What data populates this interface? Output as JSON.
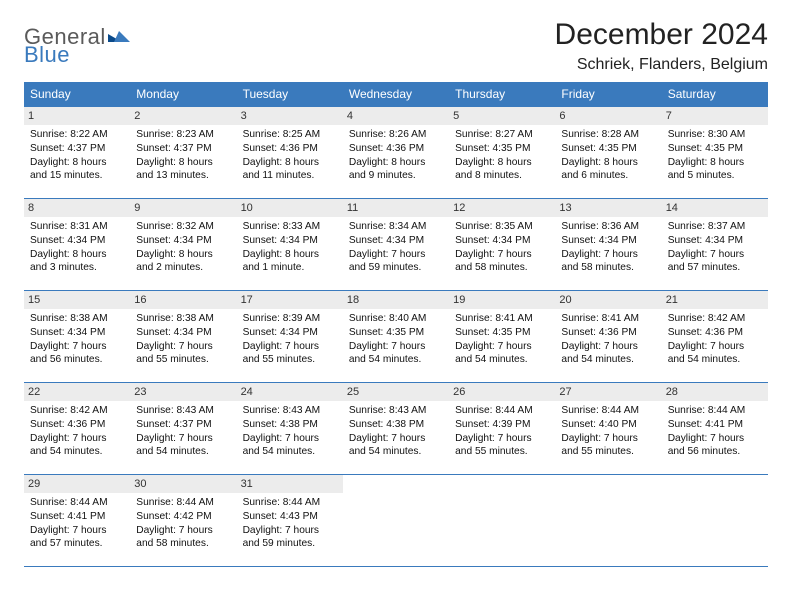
{
  "logo": {
    "text1": "General",
    "text2": "Blue"
  },
  "title": "December 2024",
  "location": "Schriek, Flanders, Belgium",
  "colors": {
    "header_bg": "#3a7abd",
    "header_fg": "#ffffff",
    "date_bg": "#ececec",
    "rule": "#3a7abd",
    "logo_gray": "#5a5a5a",
    "logo_blue": "#3a7abd"
  },
  "day_names": [
    "Sunday",
    "Monday",
    "Tuesday",
    "Wednesday",
    "Thursday",
    "Friday",
    "Saturday"
  ],
  "weeks": [
    [
      {
        "date": "1",
        "sunrise": "Sunrise: 8:22 AM",
        "sunset": "Sunset: 4:37 PM",
        "daylight1": "Daylight: 8 hours",
        "daylight2": "and 15 minutes."
      },
      {
        "date": "2",
        "sunrise": "Sunrise: 8:23 AM",
        "sunset": "Sunset: 4:37 PM",
        "daylight1": "Daylight: 8 hours",
        "daylight2": "and 13 minutes."
      },
      {
        "date": "3",
        "sunrise": "Sunrise: 8:25 AM",
        "sunset": "Sunset: 4:36 PM",
        "daylight1": "Daylight: 8 hours",
        "daylight2": "and 11 minutes."
      },
      {
        "date": "4",
        "sunrise": "Sunrise: 8:26 AM",
        "sunset": "Sunset: 4:36 PM",
        "daylight1": "Daylight: 8 hours",
        "daylight2": "and 9 minutes."
      },
      {
        "date": "5",
        "sunrise": "Sunrise: 8:27 AM",
        "sunset": "Sunset: 4:35 PM",
        "daylight1": "Daylight: 8 hours",
        "daylight2": "and 8 minutes."
      },
      {
        "date": "6",
        "sunrise": "Sunrise: 8:28 AM",
        "sunset": "Sunset: 4:35 PM",
        "daylight1": "Daylight: 8 hours",
        "daylight2": "and 6 minutes."
      },
      {
        "date": "7",
        "sunrise": "Sunrise: 8:30 AM",
        "sunset": "Sunset: 4:35 PM",
        "daylight1": "Daylight: 8 hours",
        "daylight2": "and 5 minutes."
      }
    ],
    [
      {
        "date": "8",
        "sunrise": "Sunrise: 8:31 AM",
        "sunset": "Sunset: 4:34 PM",
        "daylight1": "Daylight: 8 hours",
        "daylight2": "and 3 minutes."
      },
      {
        "date": "9",
        "sunrise": "Sunrise: 8:32 AM",
        "sunset": "Sunset: 4:34 PM",
        "daylight1": "Daylight: 8 hours",
        "daylight2": "and 2 minutes."
      },
      {
        "date": "10",
        "sunrise": "Sunrise: 8:33 AM",
        "sunset": "Sunset: 4:34 PM",
        "daylight1": "Daylight: 8 hours",
        "daylight2": "and 1 minute."
      },
      {
        "date": "11",
        "sunrise": "Sunrise: 8:34 AM",
        "sunset": "Sunset: 4:34 PM",
        "daylight1": "Daylight: 7 hours",
        "daylight2": "and 59 minutes."
      },
      {
        "date": "12",
        "sunrise": "Sunrise: 8:35 AM",
        "sunset": "Sunset: 4:34 PM",
        "daylight1": "Daylight: 7 hours",
        "daylight2": "and 58 minutes."
      },
      {
        "date": "13",
        "sunrise": "Sunrise: 8:36 AM",
        "sunset": "Sunset: 4:34 PM",
        "daylight1": "Daylight: 7 hours",
        "daylight2": "and 58 minutes."
      },
      {
        "date": "14",
        "sunrise": "Sunrise: 8:37 AM",
        "sunset": "Sunset: 4:34 PM",
        "daylight1": "Daylight: 7 hours",
        "daylight2": "and 57 minutes."
      }
    ],
    [
      {
        "date": "15",
        "sunrise": "Sunrise: 8:38 AM",
        "sunset": "Sunset: 4:34 PM",
        "daylight1": "Daylight: 7 hours",
        "daylight2": "and 56 minutes."
      },
      {
        "date": "16",
        "sunrise": "Sunrise: 8:38 AM",
        "sunset": "Sunset: 4:34 PM",
        "daylight1": "Daylight: 7 hours",
        "daylight2": "and 55 minutes."
      },
      {
        "date": "17",
        "sunrise": "Sunrise: 8:39 AM",
        "sunset": "Sunset: 4:34 PM",
        "daylight1": "Daylight: 7 hours",
        "daylight2": "and 55 minutes."
      },
      {
        "date": "18",
        "sunrise": "Sunrise: 8:40 AM",
        "sunset": "Sunset: 4:35 PM",
        "daylight1": "Daylight: 7 hours",
        "daylight2": "and 54 minutes."
      },
      {
        "date": "19",
        "sunrise": "Sunrise: 8:41 AM",
        "sunset": "Sunset: 4:35 PM",
        "daylight1": "Daylight: 7 hours",
        "daylight2": "and 54 minutes."
      },
      {
        "date": "20",
        "sunrise": "Sunrise: 8:41 AM",
        "sunset": "Sunset: 4:36 PM",
        "daylight1": "Daylight: 7 hours",
        "daylight2": "and 54 minutes."
      },
      {
        "date": "21",
        "sunrise": "Sunrise: 8:42 AM",
        "sunset": "Sunset: 4:36 PM",
        "daylight1": "Daylight: 7 hours",
        "daylight2": "and 54 minutes."
      }
    ],
    [
      {
        "date": "22",
        "sunrise": "Sunrise: 8:42 AM",
        "sunset": "Sunset: 4:36 PM",
        "daylight1": "Daylight: 7 hours",
        "daylight2": "and 54 minutes."
      },
      {
        "date": "23",
        "sunrise": "Sunrise: 8:43 AM",
        "sunset": "Sunset: 4:37 PM",
        "daylight1": "Daylight: 7 hours",
        "daylight2": "and 54 minutes."
      },
      {
        "date": "24",
        "sunrise": "Sunrise: 8:43 AM",
        "sunset": "Sunset: 4:38 PM",
        "daylight1": "Daylight: 7 hours",
        "daylight2": "and 54 minutes."
      },
      {
        "date": "25",
        "sunrise": "Sunrise: 8:43 AM",
        "sunset": "Sunset: 4:38 PM",
        "daylight1": "Daylight: 7 hours",
        "daylight2": "and 54 minutes."
      },
      {
        "date": "26",
        "sunrise": "Sunrise: 8:44 AM",
        "sunset": "Sunset: 4:39 PM",
        "daylight1": "Daylight: 7 hours",
        "daylight2": "and 55 minutes."
      },
      {
        "date": "27",
        "sunrise": "Sunrise: 8:44 AM",
        "sunset": "Sunset: 4:40 PM",
        "daylight1": "Daylight: 7 hours",
        "daylight2": "and 55 minutes."
      },
      {
        "date": "28",
        "sunrise": "Sunrise: 8:44 AM",
        "sunset": "Sunset: 4:41 PM",
        "daylight1": "Daylight: 7 hours",
        "daylight2": "and 56 minutes."
      }
    ],
    [
      {
        "date": "29",
        "sunrise": "Sunrise: 8:44 AM",
        "sunset": "Sunset: 4:41 PM",
        "daylight1": "Daylight: 7 hours",
        "daylight2": "and 57 minutes."
      },
      {
        "date": "30",
        "sunrise": "Sunrise: 8:44 AM",
        "sunset": "Sunset: 4:42 PM",
        "daylight1": "Daylight: 7 hours",
        "daylight2": "and 58 minutes."
      },
      {
        "date": "31",
        "sunrise": "Sunrise: 8:44 AM",
        "sunset": "Sunset: 4:43 PM",
        "daylight1": "Daylight: 7 hours",
        "daylight2": "and 59 minutes."
      },
      null,
      null,
      null,
      null
    ]
  ]
}
